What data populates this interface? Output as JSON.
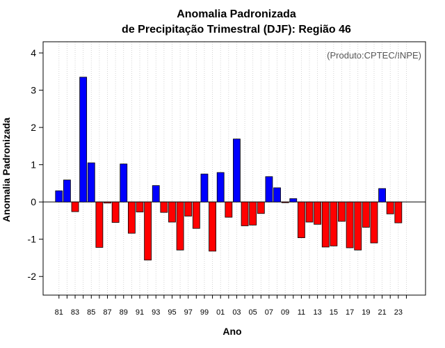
{
  "chart_data": {
    "type": "bar",
    "title_line1": "Anomalia Padronizada",
    "title_line2": "de Precipitação Trimestral (DJF): Região 46",
    "xlabel": "Ano",
    "ylabel": "Anomalia Padronizada",
    "annotation": "(Produto:CPTEC/INPE)",
    "ylim": [
      -2.5,
      4.3
    ],
    "yticks": [
      -2,
      -1,
      0,
      1,
      2,
      3,
      4
    ],
    "grid": "vertical-dotted",
    "positive_color": "#0000ff",
    "negative_color": "#ff0000",
    "categories": [
      "81",
      "82",
      "83",
      "84",
      "85",
      "86",
      "87",
      "88",
      "89",
      "90",
      "91",
      "92",
      "93",
      "94",
      "95",
      "96",
      "97",
      "98",
      "99",
      "00",
      "01",
      "02",
      "03",
      "04",
      "05",
      "06",
      "07",
      "08",
      "09",
      "10",
      "11",
      "12",
      "13",
      "14",
      "15",
      "16",
      "17",
      "18",
      "19",
      "20",
      "21",
      "22",
      "23"
    ],
    "tick_labels": [
      "81",
      "83",
      "85",
      "87",
      "89",
      "91",
      "93",
      "95",
      "97",
      "99",
      "01",
      "03",
      "05",
      "07",
      "09",
      "11",
      "13",
      "15",
      "17",
      "19",
      "21",
      "23"
    ],
    "values": [
      0.3,
      0.59,
      -0.26,
      3.35,
      1.05,
      -1.22,
      -0.03,
      -0.55,
      1.02,
      -0.84,
      -0.27,
      -1.56,
      0.44,
      -0.28,
      -0.54,
      -1.29,
      -0.38,
      -0.71,
      0.75,
      -1.32,
      0.79,
      -0.41,
      1.69,
      -0.64,
      -0.62,
      -0.31,
      0.68,
      0.38,
      -0.02,
      0.09,
      -0.96,
      -0.54,
      -0.6,
      -1.21,
      -1.18,
      -0.52,
      -1.23,
      -1.29,
      -0.68,
      -1.1,
      0.36,
      -0.32,
      -0.56
    ]
  }
}
